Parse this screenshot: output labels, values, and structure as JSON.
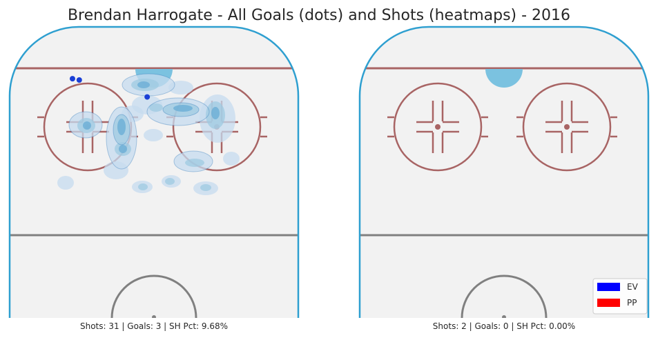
{
  "chart_data": {
    "type": "scatter",
    "title": "Brendan Harrogate - All Goals (dots) and Shots (heatmaps) - 2016",
    "legend": {
      "placement": "bottom-right",
      "entries": [
        {
          "label": "EV",
          "color": "#0000ff"
        },
        {
          "label": "PP",
          "color": "#ff0000"
        }
      ]
    },
    "panels": [
      {
        "name": "left",
        "stats_text": "Shots: 31 | Goals: 3 | SH Pct: 9.68%",
        "shots": 31,
        "goals": 3,
        "sh_pct": "9.68%",
        "goal_dots_ev": [
          [
            -24,
            85
          ],
          [
            -22,
            84.5
          ],
          [
            -2,
            78
          ]
        ],
        "goal_dots_pp": []
      },
      {
        "name": "right",
        "stats_text": "Shots: 2 | Goals: 0 | SH Pct: 0.00%",
        "shots": 2,
        "goals": 0,
        "sh_pct": "0.00%",
        "goal_dots_ev": [],
        "goal_dots_pp": []
      }
    ]
  },
  "colors": {
    "rink_border": "#2e9fd0",
    "red_lines": "#a86464",
    "blue_line": "#808080",
    "ice": "#f2f2f2",
    "heat_light": "#c6dbef",
    "heat_mid": "#6baed6",
    "heat_dark": "#2171b5",
    "goal_ev": "#1a3fd6"
  }
}
